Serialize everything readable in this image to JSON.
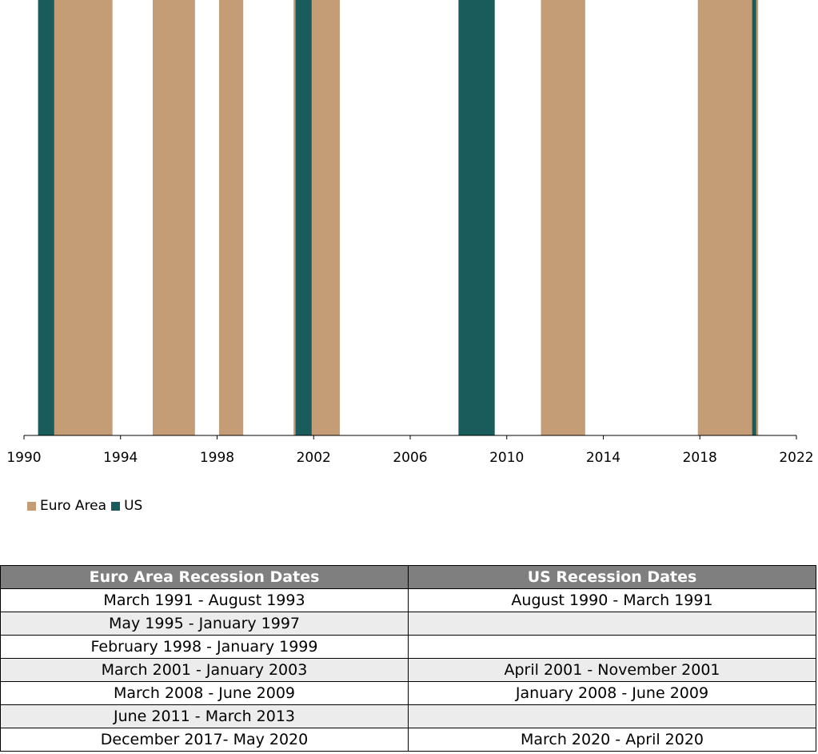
{
  "colors": {
    "euro": "#c49c76",
    "us": "#1a5c5c"
  },
  "chart_data": {
    "type": "bar",
    "x_axis": {
      "min": 1990,
      "max": 2022,
      "ticks": [
        "1990",
        "1994",
        "1998",
        "2002",
        "2006",
        "2010",
        "2014",
        "2018",
        "2022"
      ]
    },
    "legend": {
      "placement": "bottom-left",
      "entries": [
        "Euro Area",
        "US"
      ]
    },
    "series": [
      {
        "name": "Euro Area",
        "color": "#c49c76",
        "periods": [
          [
            "1991-03",
            "1993-08"
          ],
          [
            "1995-05",
            "1997-01"
          ],
          [
            "1998-02",
            "1999-01"
          ],
          [
            "2001-03",
            "2003-01"
          ],
          [
            "2008-03",
            "2009-06"
          ],
          [
            "2011-06",
            "2013-03"
          ],
          [
            "2017-12",
            "2020-05"
          ]
        ]
      },
      {
        "name": "US",
        "color": "#1a5c5c",
        "periods": [
          [
            "1990-08",
            "1991-03"
          ],
          [
            "2001-04",
            "2001-11"
          ],
          [
            "2008-01",
            "2009-06"
          ],
          [
            "2020-03",
            "2020-04"
          ]
        ]
      }
    ]
  },
  "table": {
    "headers": [
      "Euro Area Recession Dates",
      "US Recession Dates"
    ],
    "rows": [
      [
        "March 1991 - August 1993",
        "August 1990 - March 1991"
      ],
      [
        "May 1995 - January 1997",
        ""
      ],
      [
        "February 1998 - January 1999",
        ""
      ],
      [
        "March 2001 - January 2003",
        "April 2001 - November 2001"
      ],
      [
        "March 2008 - June 2009",
        "January 2008 - June 2009"
      ],
      [
        "June 2011 - March 2013",
        ""
      ],
      [
        "December 2017- May 2020",
        "March 2020 - April 2020"
      ]
    ]
  }
}
